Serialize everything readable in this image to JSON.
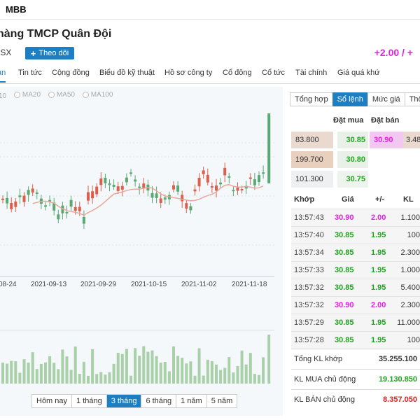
{
  "header": {
    "ticker": "MBB"
  },
  "company": {
    "name": "hàng TMCP Quân Đội",
    "exchange": "ISX",
    "follow_label": "Theo dõi",
    "change": "+2.00 / +"
  },
  "tabs": [
    "an",
    "Tin tức",
    "Cộng đồng",
    "Biểu đồ kỹ thuật",
    "Hồ sơ công ty",
    "Cổ đông",
    "Cổ tức",
    "Tài chính",
    "Giá quá khứ"
  ],
  "chart": {
    "ma_labels": [
      "10",
      "MA20",
      "MA50",
      "MA100"
    ],
    "x_labels": [
      "08-24",
      "2021-09-13",
      "2021-09-29",
      "2021-10-15",
      "2021-11-02",
      "2021-11-18"
    ],
    "colors": {
      "up": "#5aa872",
      "down": "#d9604c",
      "ma": "#e8a898",
      "volume": "#a9d0a9"
    }
  },
  "chart_data": {
    "type": "candlestick",
    "ranges": [
      "Hôm nay",
      "1 tháng",
      "3 tháng",
      "6 tháng",
      "1 năm",
      "5 năm"
    ],
    "selected_range": "3 tháng"
  },
  "ranges": [
    "Hôm nay",
    "1 tháng",
    "3 tháng",
    "6 tháng",
    "1 năm",
    "5 năm"
  ],
  "right": {
    "tabs": [
      "Tổng hợp",
      "Sổ lệnh",
      "Mức giá",
      "Thố"
    ],
    "ob_headers": {
      "buy": "Đặt mua",
      "sell": "Đặt bán"
    },
    "orderbook": [
      {
        "vol": "83.800",
        "buy": "30.85",
        "sell": "30.90",
        "sellvol": "3.48"
      },
      {
        "vol": "199.700",
        "buy": "30.80",
        "sell": "",
        "sellvol": ""
      },
      {
        "vol": "101.300",
        "buy": "30.75",
        "sell": "",
        "sellvol": ""
      }
    ],
    "trade_headers": {
      "time": "Khớp",
      "price": "Giá",
      "chg": "+/-",
      "vol": "KL"
    },
    "trades": [
      {
        "time": "13:57:43",
        "price": "30.90",
        "chg": "2.00",
        "vol": "1.100",
        "cls": "ceil"
      },
      {
        "time": "13:57:40",
        "price": "30.85",
        "chg": "1.95",
        "vol": "100",
        "cls": "up"
      },
      {
        "time": "13:57:34",
        "price": "30.85",
        "chg": "1.95",
        "vol": "2.300",
        "cls": "up"
      },
      {
        "time": "13:57:33",
        "price": "30.85",
        "chg": "1.95",
        "vol": "1.000",
        "cls": "up"
      },
      {
        "time": "13:57:32",
        "price": "30.85",
        "chg": "1.95",
        "vol": "5.400",
        "cls": "up"
      },
      {
        "time": "13:57:32",
        "price": "30.90",
        "chg": "2.00",
        "vol": "2.300",
        "cls": "ceil"
      },
      {
        "time": "13:57:29",
        "price": "30.85",
        "chg": "1.95",
        "vol": "11.000",
        "cls": "up"
      },
      {
        "time": "13:57:28",
        "price": "30.85",
        "chg": "1.95",
        "vol": "100",
        "cls": "up"
      }
    ],
    "summary": [
      {
        "label": "Tổng KL khớp",
        "value": "35.255.100",
        "cls": ""
      },
      {
        "label": "KL MUA chủ động",
        "value": "19.130.850",
        "cls": "up"
      },
      {
        "label": "KL BÁN chủ động",
        "value": "8.357.050",
        "cls": "down"
      }
    ]
  }
}
